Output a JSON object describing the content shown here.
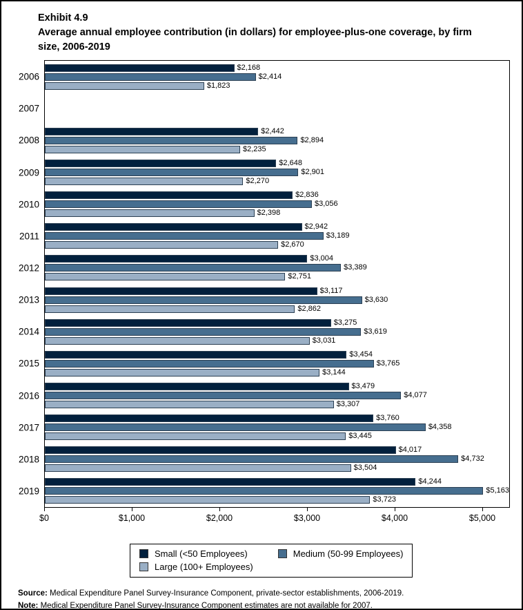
{
  "header": {
    "exhibit": "Exhibit 4.9",
    "title": "Average annual employee contribution (in dollars) for employee-plus-one coverage, by firm size, 2006-2019"
  },
  "chart_data": {
    "type": "bar",
    "orientation": "horizontal",
    "title": "Average annual employee contribution (in dollars) for employee-plus-one coverage, by firm size, 2006-2019",
    "categories": [
      "2006",
      "2007",
      "2008",
      "2009",
      "2010",
      "2011",
      "2012",
      "2013",
      "2014",
      "2015",
      "2016",
      "2017",
      "2018",
      "2019"
    ],
    "series": [
      {
        "key": "small",
        "name": "Small (<50 Employees)",
        "color": "#02203D",
        "values": [
          2168,
          null,
          2442,
          2648,
          2836,
          2942,
          3004,
          3117,
          3275,
          3454,
          3479,
          3760,
          4017,
          4244
        ],
        "labels": [
          "$2,168",
          null,
          "$2,442",
          "$2,648",
          "$2,836",
          "$2,942",
          "$3,004",
          "$3,117",
          "$3,275",
          "$3,454",
          "$3,479",
          "$3,760",
          "$4,017",
          "$4,244"
        ]
      },
      {
        "key": "medium",
        "name": "Medium (50-99 Employees)",
        "color": "#466E8F",
        "values": [
          2414,
          null,
          2894,
          2901,
          3056,
          3189,
          3389,
          3630,
          3619,
          3765,
          4077,
          4358,
          4732,
          5163
        ],
        "labels": [
          "$2,414",
          null,
          "$2,894",
          "$2,901",
          "$3,056",
          "$3,189",
          "$3,389",
          "$3,630",
          "$3,619",
          "$3,765",
          "$4,077",
          "$4,358",
          "$4,732",
          "$5,163"
        ]
      },
      {
        "key": "large",
        "name": "Large (100+ Employees)",
        "color": "#9AAFC5",
        "values": [
          1823,
          null,
          2235,
          2270,
          2398,
          2670,
          2751,
          2862,
          3031,
          3144,
          3307,
          3445,
          3504,
          3723
        ],
        "labels": [
          "$1,823",
          null,
          "$2,235",
          "$2,270",
          "$2,398",
          "$2,670",
          "$2,751",
          "$2,862",
          "$3,031",
          "$3,144",
          "$3,307",
          "$3,445",
          "$3,504",
          "$3,723"
        ]
      }
    ],
    "xlim": [
      0,
      5315
    ],
    "x_ticks": [
      {
        "value": 0,
        "label": "$0"
      },
      {
        "value": 1000,
        "label": "$1,000"
      },
      {
        "value": 2000,
        "label": "$2,000"
      },
      {
        "value": 3000,
        "label": "$3,000"
      },
      {
        "value": 4000,
        "label": "$4,000"
      },
      {
        "value": 5000,
        "label": "$5,000"
      }
    ],
    "grid": false,
    "legend_position": "bottom"
  },
  "footer": {
    "source_label": "Source:",
    "source_text": "Medical Expenditure Panel Survey-Insurance Component, private-sector establishments, 2006-2019.",
    "note_label": "Note:",
    "note_text": "Medical Expenditure Panel Survey-Insurance Component estimates are not available for 2007."
  }
}
